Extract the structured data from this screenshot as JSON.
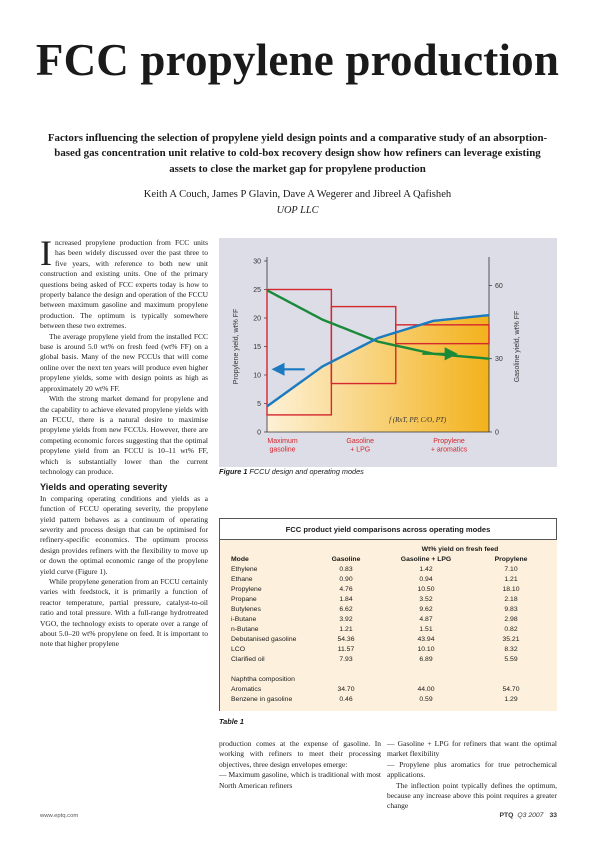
{
  "title": "FCC propylene production",
  "subtitle": "Factors influencing the selection of propylene yield design points and a comparative study of an absorption-based gas concentration unit relative to cold-box recovery design show how refiners can leverage existing assets to close the market gap for propylene production",
  "authors": "Keith A Couch, James P Glavin, Dave A Wegerer and Jibreel A Qafisheh",
  "affiliation": "UOP LLC",
  "body": {
    "dropcap": "I",
    "p1": "ncreased propylene production from FCC units has been widely discussed over the past three to five years, with reference to both new unit construction and existing units. One of the primary questions being asked of FCC experts today is how to properly balance the design and operation of the FCCU between maximum gasoline and maximum propylene production. The optimum is typically somewhere between these two extremes.",
    "p2": "The average propylene yield from the installed FCC base is around 5.0 wt% on fresh feed (wt% FF) on a global basis. Many of the new FCCUs that will come online over the next ten years will produce even higher propylene yields, some with design points as high as approximately 20 wt% FF.",
    "p3": "With the strong market demand for propylene and the capability to achieve elevated propylene yields with an FCCU, there is a natural desire to maximise propylene yields from new FCCUs. However, there are competing economic forces suggesting that the optimal propylene yield from an FCCU is 10–11 wt% FF, which is substantially lower than the current technology can produce.",
    "heading": "Yields and operating severity",
    "p4": "In comparing operating conditions and yields as a function of FCCU operating severity, the propylene yield pattern behaves as a continuum of operating severity and process design that can be optimised for refinery-specific economics. The optimum process design provides refiners with the flexibility to move up or down the optimal economic range of the propylene yield curve (Figure 1).",
    "p5": "While propylene generation from an FCCU certainly varies with feedstock, it is primarily a function of reactor temperature, partial pressure, catalyst-to-oil ratio and total pressure. With a full-range hydrotreated VGO, the technology exists to operate over a range of about 5.0–20 wt% propylene on feed. It is important to note that higher propylene",
    "col2": "production comes at the expense of gasoline. In working with refiners to meet their processing objectives, three design envelopes emerge:",
    "col2b": "— Maximum gasoline, which is traditional with most North American refiners",
    "col3a": "— Gasoline + LPG for refiners that want the optimal market flexibility",
    "col3b": "— Propylene plus aromatics for true petrochemical applications.",
    "col3c": "The inflection point typically defines the optimum, because any increase above this point requires a greater change"
  },
  "figure": {
    "caption_label": "Figure 1",
    "caption_text": "FCCU design and operating modes",
    "ylabel_left": "Propylene yield, wt% FF",
    "ylabel_right": "Gasoline yield, wt% FF",
    "xfunc": "f (R",
    "mode_labels": [
      "Maximum gasoline",
      "Gasoline + LPG",
      "Propylene + aromatics"
    ],
    "colors": {
      "gasoline_curve": "#1a8a3a",
      "propylene_curve": "#1b7ac0",
      "envelope": "#d6262e",
      "fill_light": "#fdf1d6",
      "fill_dark": "#f3b21c"
    }
  },
  "chart_data": {
    "type": "line",
    "title": "",
    "xlabel": "f (RxT, PP, C/O, PT)",
    "x_categories": [
      "Maximum gasoline",
      "Gasoline + LPG",
      "Propylene + aromatics"
    ],
    "left_axis": {
      "label": "Propylene yield, wt% FF",
      "ylim": [
        0,
        30
      ],
      "ticks": [
        0,
        5,
        10,
        15,
        20,
        25,
        30
      ]
    },
    "right_axis": {
      "label": "Gasoline yield, wt% FF",
      "ylim": [
        0,
        70
      ],
      "ticks": [
        0,
        30,
        60
      ]
    },
    "series": [
      {
        "name": "Propylene yield",
        "axis": "left",
        "x": [
          0,
          0.25,
          0.5,
          0.75,
          1.0
        ],
        "values": [
          4.5,
          11.5,
          16.5,
          19.5,
          20.5
        ]
      },
      {
        "name": "Gasoline yield",
        "axis": "right",
        "x": [
          0,
          0.25,
          0.5,
          0.75,
          1.0
        ],
        "values": [
          58,
          46,
          37,
          32,
          30
        ]
      }
    ],
    "envelopes": [
      {
        "label": "Maximum gasoline",
        "x": [
          0,
          0.29
        ],
        "ylim_left": [
          3,
          25
        ]
      },
      {
        "label": "Gasoline + LPG",
        "x": [
          0.29,
          0.58
        ],
        "ylim_left": [
          8.5,
          22
        ]
      },
      {
        "label": "Propylene + aromatics",
        "x": [
          0.58,
          1.0
        ],
        "ylim_left": [
          15.5,
          18.8
        ]
      }
    ]
  },
  "table": {
    "title": "FCC product yield comparisons across operating modes",
    "super_header": "Wt% yield on fresh feed",
    "caption_label": "Table 1",
    "columns": [
      "Mode",
      "Gasoline",
      "Gasoline + LPG",
      "Propylene"
    ],
    "rows": [
      [
        "Ethylene",
        "0.83",
        "1.42",
        "7.10"
      ],
      [
        "Ethane",
        "0.90",
        "0.94",
        "1.21"
      ],
      [
        "Propylene",
        "4.76",
        "10.50",
        "18.10"
      ],
      [
        "Propane",
        "1.84",
        "3.52",
        "2.18"
      ],
      [
        "Butylenes",
        "6.62",
        "9.62",
        "9.83"
      ],
      [
        "i-Butane",
        "3.92",
        "4.87",
        "2.98"
      ],
      [
        "n-Butane",
        "1.21",
        "1.51",
        "0.82"
      ],
      [
        "Debutanised gasoline",
        "54.36",
        "43.94",
        "35.21"
      ],
      [
        "LCO",
        "11.57",
        "10.10",
        "8.32"
      ],
      [
        "Clarified oil",
        "7.93",
        "6.89",
        "5.59"
      ]
    ],
    "naphtha_header": "Naphtha composition",
    "naphtha_rows": [
      [
        "Aromatics",
        "34.70",
        "44.00",
        "54.70"
      ],
      [
        "Benzene in gasoline",
        "0.46",
        "0.59",
        "1.29"
      ]
    ]
  },
  "footer": {
    "url": "www.eptq.com",
    "publication": "PTQ",
    "issue": "Q3 2007",
    "page": "33"
  }
}
